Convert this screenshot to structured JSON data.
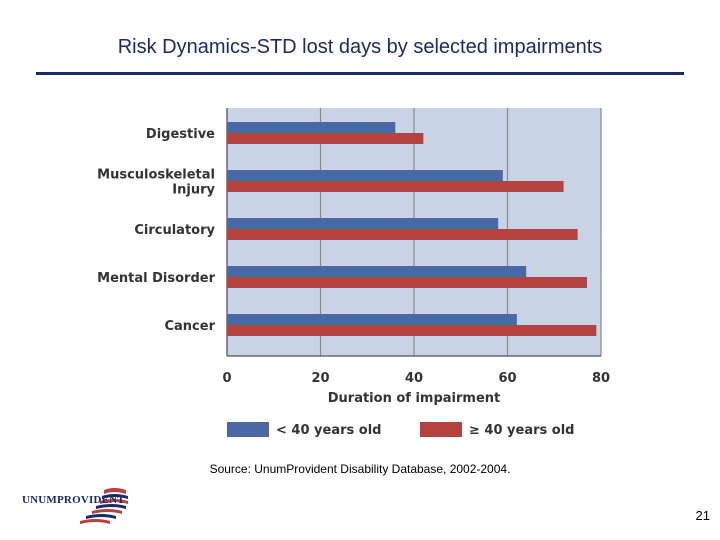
{
  "page": {
    "title": "Risk Dynamics-STD lost days by selected impairments",
    "source": "Source: UnumProvident Disability Database, 2002-2004.",
    "page_number": "21",
    "logo_text": "UNUMPROVIDENT"
  },
  "colors": {
    "series_under_40": "#4a68a4",
    "series_40_plus": "#b5423f",
    "plot_background": "#c8d3e6",
    "grid": "#8a8a8a",
    "title": "#1a2a6c"
  },
  "chart_data": {
    "type": "bar",
    "orientation": "horizontal",
    "categories": [
      "Digestive",
      "Musculoskeletal Injury",
      "Circulatory",
      "Mental Disorder",
      "Cancer"
    ],
    "category_label_lines": [
      [
        "Digestive"
      ],
      [
        "Musculoskeletal",
        "Injury"
      ],
      [
        "Circulatory"
      ],
      [
        "Mental Disorder"
      ],
      [
        "Cancer"
      ]
    ],
    "series": [
      {
        "name": "< 40 years old",
        "values": [
          36,
          59,
          58,
          64,
          62
        ]
      },
      {
        "name": "≥ 40 years old",
        "values": [
          42,
          72,
          75,
          77,
          79
        ]
      }
    ],
    "xlabel": "Duration of impairment",
    "ylabel": "",
    "xlim": [
      0,
      80
    ],
    "xticks": [
      0,
      20,
      40,
      60,
      80
    ],
    "grid": true,
    "legend_position": "bottom"
  }
}
